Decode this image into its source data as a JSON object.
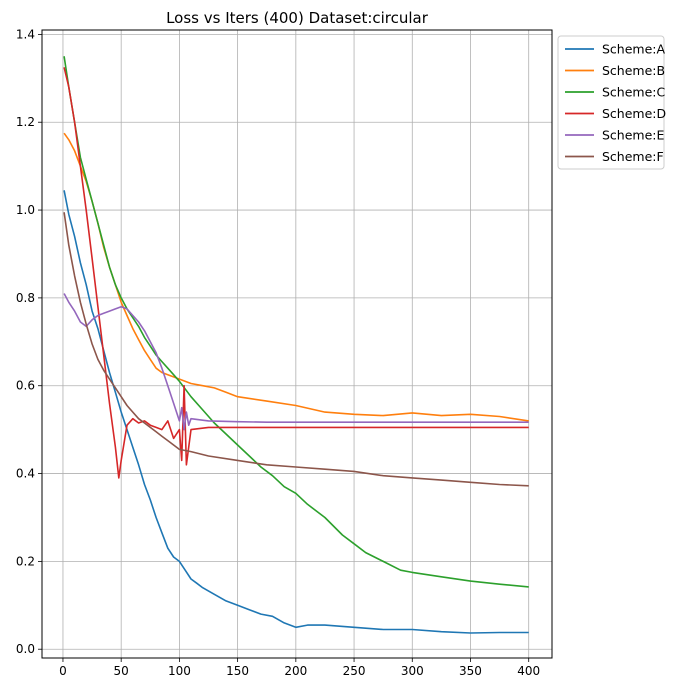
{
  "chart_data": {
    "type": "line",
    "title": "Loss vs Iters (400) Dataset:circular",
    "xlabel": "",
    "ylabel": "",
    "xlim": [
      -18,
      420
    ],
    "ylim": [
      -0.02,
      1.41
    ],
    "xticks": [
      0,
      50,
      100,
      150,
      200,
      250,
      300,
      350,
      400
    ],
    "yticks": [
      0.0,
      0.2,
      0.4,
      0.6,
      0.8,
      1.0,
      1.2,
      1.4
    ],
    "grid": true,
    "legend_position": "outside-top-right",
    "series": [
      {
        "name": "Scheme:A",
        "color": "#1f77b4",
        "x": [
          1,
          5,
          10,
          15,
          20,
          25,
          30,
          35,
          40,
          45,
          50,
          55,
          60,
          65,
          70,
          75,
          80,
          85,
          90,
          95,
          100,
          105,
          110,
          115,
          120,
          130,
          140,
          150,
          160,
          170,
          180,
          190,
          200,
          210,
          225,
          250,
          275,
          300,
          325,
          350,
          375,
          400
        ],
        "y": [
          1.045,
          0.99,
          0.94,
          0.88,
          0.83,
          0.77,
          0.73,
          0.68,
          0.63,
          0.585,
          0.54,
          0.5,
          0.46,
          0.42,
          0.375,
          0.34,
          0.3,
          0.265,
          0.23,
          0.21,
          0.2,
          0.18,
          0.16,
          0.15,
          0.14,
          0.125,
          0.11,
          0.1,
          0.09,
          0.08,
          0.075,
          0.06,
          0.05,
          0.055,
          0.055,
          0.05,
          0.045,
          0.045,
          0.04,
          0.037,
          0.038,
          0.038
        ]
      },
      {
        "name": "Scheme:B",
        "color": "#ff7f0e",
        "x": [
          1,
          5,
          10,
          15,
          20,
          25,
          30,
          35,
          40,
          45,
          50,
          55,
          60,
          65,
          70,
          75,
          80,
          85,
          90,
          95,
          100,
          110,
          120,
          130,
          140,
          150,
          175,
          200,
          225,
          250,
          275,
          300,
          325,
          350,
          375,
          400
        ],
        "y": [
          1.175,
          1.16,
          1.135,
          1.1,
          1.065,
          1.02,
          0.97,
          0.915,
          0.87,
          0.83,
          0.79,
          0.76,
          0.73,
          0.705,
          0.68,
          0.66,
          0.64,
          0.63,
          0.625,
          0.62,
          0.615,
          0.605,
          0.6,
          0.595,
          0.585,
          0.575,
          0.565,
          0.555,
          0.54,
          0.535,
          0.532,
          0.538,
          0.532,
          0.535,
          0.53,
          0.52
        ]
      },
      {
        "name": "Scheme:C",
        "color": "#2ca02c",
        "x": [
          1,
          5,
          10,
          15,
          20,
          25,
          30,
          35,
          40,
          45,
          50,
          55,
          60,
          65,
          70,
          75,
          80,
          85,
          90,
          95,
          100,
          110,
          120,
          130,
          140,
          150,
          160,
          170,
          180,
          190,
          200,
          210,
          225,
          240,
          250,
          260,
          275,
          290,
          300,
          325,
          350,
          375,
          400
        ],
        "y": [
          1.35,
          1.28,
          1.2,
          1.12,
          1.07,
          1.02,
          0.97,
          0.92,
          0.87,
          0.83,
          0.8,
          0.775,
          0.755,
          0.735,
          0.71,
          0.69,
          0.67,
          0.655,
          0.64,
          0.625,
          0.61,
          0.575,
          0.545,
          0.515,
          0.49,
          0.465,
          0.44,
          0.415,
          0.395,
          0.37,
          0.355,
          0.33,
          0.3,
          0.26,
          0.24,
          0.22,
          0.2,
          0.18,
          0.175,
          0.165,
          0.155,
          0.148,
          0.142
        ]
      },
      {
        "name": "Scheme:D",
        "color": "#d62728",
        "x": [
          1,
          5,
          10,
          15,
          20,
          25,
          30,
          35,
          40,
          45,
          48,
          50,
          55,
          60,
          65,
          70,
          75,
          80,
          85,
          90,
          95,
          100,
          102,
          104,
          106,
          110,
          125,
          150,
          175,
          200,
          225,
          250,
          275,
          300,
          325,
          350,
          375,
          400
        ],
        "y": [
          1.325,
          1.28,
          1.2,
          1.1,
          1.0,
          0.89,
          0.78,
          0.67,
          0.56,
          0.46,
          0.39,
          0.43,
          0.51,
          0.525,
          0.515,
          0.52,
          0.51,
          0.505,
          0.5,
          0.52,
          0.48,
          0.5,
          0.43,
          0.6,
          0.42,
          0.5,
          0.505,
          0.505,
          0.505,
          0.505,
          0.505,
          0.505,
          0.505,
          0.505,
          0.505,
          0.505,
          0.505,
          0.505
        ]
      },
      {
        "name": "Scheme:E",
        "color": "#9467bd",
        "x": [
          1,
          5,
          10,
          15,
          20,
          25,
          30,
          35,
          40,
          45,
          50,
          55,
          60,
          65,
          70,
          75,
          80,
          85,
          90,
          95,
          100,
          102,
          104,
          106,
          108,
          110,
          125,
          150,
          175,
          200,
          225,
          250,
          275,
          300,
          325,
          350,
          375,
          400
        ],
        "y": [
          0.81,
          0.79,
          0.77,
          0.745,
          0.735,
          0.75,
          0.76,
          0.765,
          0.77,
          0.775,
          0.78,
          0.775,
          0.76,
          0.745,
          0.725,
          0.7,
          0.675,
          0.64,
          0.6,
          0.56,
          0.52,
          0.55,
          0.5,
          0.54,
          0.51,
          0.525,
          0.52,
          0.518,
          0.517,
          0.517,
          0.517,
          0.517,
          0.517,
          0.517,
          0.517,
          0.517,
          0.517,
          0.517
        ]
      },
      {
        "name": "Scheme:F",
        "color": "#8c564b",
        "x": [
          1,
          5,
          10,
          15,
          20,
          25,
          30,
          35,
          40,
          45,
          50,
          55,
          60,
          65,
          70,
          75,
          80,
          85,
          90,
          95,
          100,
          110,
          125,
          150,
          175,
          200,
          225,
          250,
          275,
          300,
          325,
          350,
          375,
          400
        ],
        "y": [
          0.995,
          0.92,
          0.85,
          0.79,
          0.74,
          0.695,
          0.66,
          0.635,
          0.615,
          0.595,
          0.575,
          0.555,
          0.54,
          0.525,
          0.515,
          0.505,
          0.495,
          0.485,
          0.475,
          0.465,
          0.455,
          0.45,
          0.44,
          0.43,
          0.42,
          0.415,
          0.41,
          0.405,
          0.395,
          0.39,
          0.385,
          0.38,
          0.375,
          0.372
        ]
      }
    ]
  }
}
